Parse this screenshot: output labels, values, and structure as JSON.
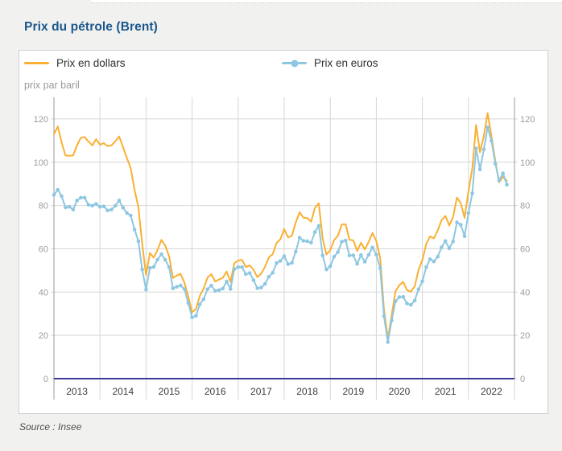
{
  "page": {
    "title": "Prix du pétrole (Brent)",
    "source": "Source : Insee",
    "background": "#f1f1ef"
  },
  "chart_data": {
    "type": "line",
    "title": "Prix du pétrole (Brent)",
    "unit_label": "prix par baril",
    "frequency": "monthly",
    "x_start": "2013-01",
    "x_end": "2022-11",
    "years": [
      "2013",
      "2014",
      "2015",
      "2016",
      "2017",
      "2018",
      "2019",
      "2020",
      "2021",
      "2022"
    ],
    "yticks": [
      0,
      20,
      40,
      60,
      80,
      100,
      120
    ],
    "ylim": [
      0,
      130
    ],
    "grid": true,
    "legend_position": "top",
    "colors": {
      "dollars_line": "#f9b031",
      "euros_line": "#8ec7e2",
      "zero_axis": "#3b3b97",
      "gridline": "#d6d6d6",
      "axis_line": "#9a9a9a",
      "tick_label": "#9c9c9c",
      "year_label": "#3c3c3c",
      "title": "#1b578c"
    },
    "series": [
      {
        "name": "Prix en dollars",
        "color": "#f9b031",
        "marker": "none",
        "values": [
          112.9,
          116.5,
          109.2,
          103.1,
          103.0,
          103.1,
          107.7,
          111.3,
          111.6,
          109.5,
          107.8,
          110.6,
          108.1,
          108.8,
          107.4,
          107.8,
          109.7,
          111.9,
          107.0,
          101.9,
          97.3,
          87.3,
          79.2,
          62.2,
          47.8,
          58.1,
          55.9,
          59.5,
          64.1,
          61.5,
          56.6,
          46.5,
          47.6,
          48.4,
          44.3,
          38.0,
          30.7,
          32.2,
          38.2,
          41.6,
          46.7,
          48.3,
          44.9,
          45.8,
          46.6,
          49.5,
          44.7,
          53.3,
          54.6,
          54.9,
          51.6,
          52.3,
          50.3,
          46.9,
          48.5,
          51.7,
          56.1,
          57.5,
          62.7,
          64.4,
          69.1,
          65.3,
          66.0,
          72.1,
          76.9,
          74.4,
          74.2,
          72.5,
          78.9,
          81.0,
          64.7,
          57.4,
          59.4,
          64.0,
          66.1,
          71.2,
          71.3,
          64.2,
          63.9,
          59.0,
          62.8,
          59.7,
          63.2,
          67.3,
          63.6,
          55.7,
          32.0,
          18.4,
          29.4,
          40.3,
          43.2,
          44.7,
          40.9,
          40.2,
          42.7,
          50.2,
          54.8,
          62.3,
          65.7,
          64.8,
          68.5,
          73.2,
          75.2,
          70.8,
          74.6,
          83.7,
          81.1,
          74.3,
          86.5,
          97.1,
          117.2,
          104.6,
          112.0,
          122.7,
          111.9,
          100.5,
          90.7,
          93.3,
          91.4
        ]
      },
      {
        "name": "Prix en euros",
        "color": "#8ec7e2",
        "marker": "circle",
        "values": [
          84.9,
          87.3,
          84.3,
          79.1,
          79.4,
          78.1,
          82.3,
          83.6,
          83.6,
          80.3,
          79.9,
          80.7,
          79.4,
          79.6,
          77.7,
          78.1,
          79.9,
          82.3,
          79.0,
          76.5,
          75.4,
          68.9,
          63.5,
          50.4,
          41.1,
          51.2,
          51.6,
          55.0,
          57.5,
          54.9,
          51.5,
          41.7,
          42.4,
          43.1,
          41.3,
          34.9,
          28.3,
          29.0,
          34.3,
          36.7,
          41.3,
          43.0,
          40.6,
          40.9,
          41.6,
          44.9,
          41.4,
          50.6,
          51.5,
          51.5,
          48.3,
          48.8,
          45.5,
          41.8,
          42.1,
          43.8,
          47.1,
          48.9,
          53.4,
          54.4,
          56.6,
          52.9,
          53.5,
          58.7,
          65.1,
          63.7,
          63.5,
          62.8,
          67.7,
          70.6,
          56.9,
          50.4,
          52.0,
          56.4,
          58.5,
          63.3,
          63.8,
          56.9,
          57.0,
          53.0,
          57.1,
          54.0,
          57.2,
          60.6,
          57.3,
          51.1,
          28.9,
          16.9,
          26.9,
          35.8,
          37.7,
          37.8,
          34.7,
          34.1,
          36.1,
          41.3,
          45.0,
          51.5,
          55.2,
          54.1,
          56.4,
          60.7,
          63.6,
          60.2,
          63.4,
          72.2,
          71.1,
          65.8,
          76.5,
          85.6,
          106.4,
          96.7,
          105.9,
          116.1,
          109.9,
          99.3,
          91.6,
          94.9,
          89.6
        ]
      }
    ]
  }
}
